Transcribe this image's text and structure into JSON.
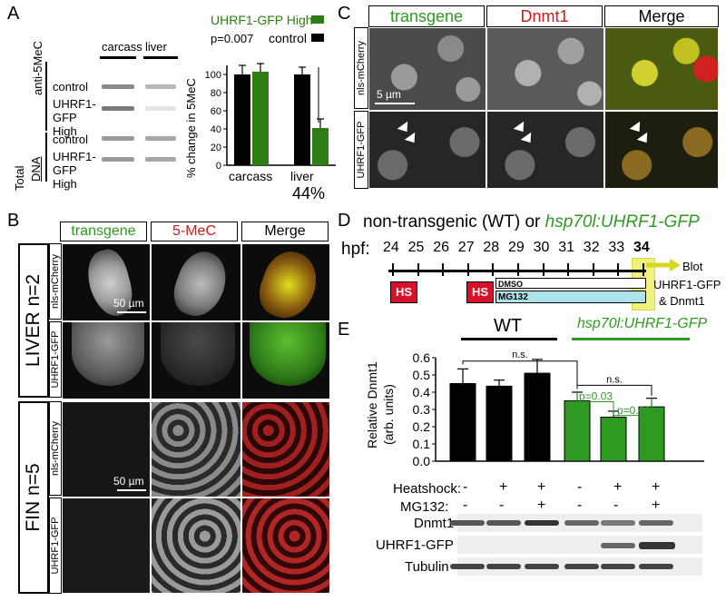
{
  "panelA": {
    "letter": "A",
    "legend_green": "UHRF1-GFP High",
    "legend_black": "control",
    "pvalue": "p=0.007",
    "lane_carcass": "carcass",
    "lane_liver": "liver",
    "row_labels": [
      "control",
      "UHRF1-GFP High",
      "control",
      "UHRF1-GFP High"
    ],
    "side_anti": "anti-5MeC",
    "side_total": "Total",
    "side_dna": "DNA",
    "ylabel": "% change in 5MeC",
    "yticks": [
      "0",
      "20",
      "40",
      "60",
      "80",
      "100"
    ],
    "group_carcass": "carcass",
    "group_liver": "liver",
    "percent": "44%",
    "chart_data": {
      "type": "bar",
      "categories": [
        "carcass",
        "liver"
      ],
      "series": [
        {
          "name": "control",
          "values": [
            100,
            100
          ],
          "err": [
            10,
            8
          ]
        },
        {
          "name": "UHRF1-GFP High",
          "values": [
            103,
            41
          ],
          "err": [
            9,
            10
          ]
        }
      ],
      "ylabel": "% change in 5MeC",
      "ylim": [
        0,
        110
      ],
      "annotations": [
        "p=0.007",
        "44%"
      ],
      "colors": {
        "control": "#000000",
        "UHRF1-GFP High": "#2e7d12"
      }
    }
  },
  "panelB": {
    "letter": "B",
    "hdr_transgene": "transgene",
    "hdr_5mec": "5-MeC",
    "hdr_merge": "Merge",
    "liver": "LIVER n=2",
    "fin": "FIN n=5",
    "row1": "nls-mCherry",
    "row2": "UHRF1-GFP",
    "row3": "nls-mCherry",
    "row4": "UHRF1-GFP",
    "scale1": "50 µm",
    "scale2": "50 µm"
  },
  "panelC": {
    "letter": "C",
    "hdr_transgene": "transgene",
    "hdr_dnmt1": "Dnmt1",
    "hdr_merge": "Merge",
    "row1": "nls-mCherry",
    "row2": "UHRF1-GFP",
    "scale": "5 µm"
  },
  "panelD": {
    "letter": "D",
    "title_a": "non-transgenic (WT) or ",
    "title_b": "hsp70l:UHRF1-GFP",
    "hpf": "hpf:",
    "hours": [
      "24",
      "25",
      "26",
      "27",
      "28",
      "29",
      "30",
      "31",
      "32",
      "33",
      "34"
    ],
    "hs": "HS",
    "dmso": "DMSO",
    "mg132": "MG132",
    "blot1": "Blot",
    "blot2": "UHRF1-GFP",
    "blot3": "& Dnmt1"
  },
  "panelE": {
    "letter": "E",
    "wt": "WT",
    "tg": "hsp70l:UHRF1-GFP",
    "ns1": "n.s.",
    "ns2": "n.s.",
    "p1": "p=0.03",
    "p2": "p=0.01",
    "ylabel1": "Relative Dnmt1",
    "ylabel2": "(arb. units)",
    "yticks": [
      "0.0",
      "0.1",
      "0.2",
      "0.3",
      "0.4",
      "0.5",
      "0.6"
    ],
    "heatshock": "Heatshock:",
    "mg132": "MG132:",
    "heat_signs": [
      "-",
      "+",
      "+",
      "-",
      "+",
      "+"
    ],
    "mg_signs": [
      "-",
      "-",
      "+",
      "-",
      "-",
      "+"
    ],
    "blot_dnmt1": "Dnmt1",
    "blot_uhrf1": "UHRF1-GFP",
    "blot_tubulin": "Tubulin",
    "chart_data": {
      "type": "bar",
      "categories": [
        "WT -/-",
        "WT +/-",
        "WT +/+",
        "Tg -/-",
        "Tg +/-",
        "Tg +/+"
      ],
      "values": [
        0.45,
        0.435,
        0.51,
        0.35,
        0.255,
        0.315
      ],
      "err": [
        0.085,
        0.035,
        0.08,
        0.05,
        0.035,
        0.05
      ],
      "ylabel": "Relative Dnmt1 (arb. units)",
      "ylim": [
        0,
        0.6
      ],
      "colors": [
        "#000000",
        "#000000",
        "#000000",
        "#2e9a22",
        "#2e9a22",
        "#2e9a22"
      ],
      "annotations": [
        "n.s.",
        "n.s.",
        "p=0.03",
        "p=0.01"
      ]
    }
  }
}
